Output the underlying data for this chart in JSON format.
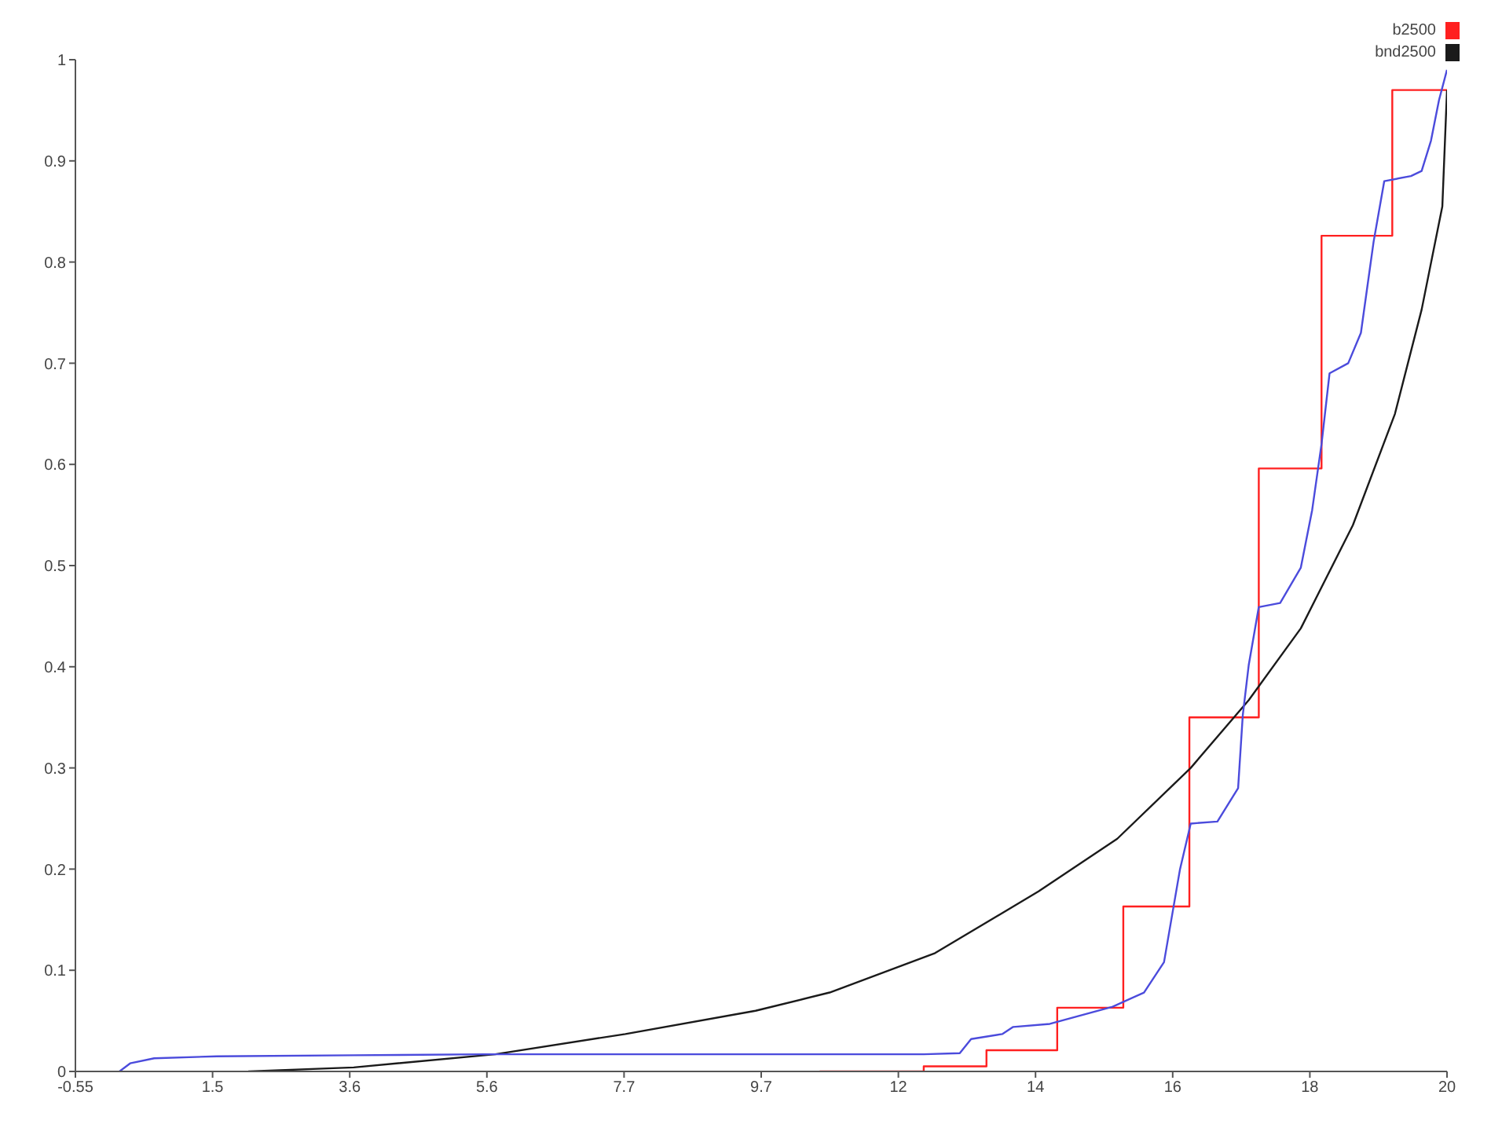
{
  "chart_data": {
    "type": "line",
    "xlim": [
      -0.55,
      20
    ],
    "xticks": [
      -0.55,
      {
        "value": 1.505,
        "label": "1.5"
      },
      {
        "value": 3.56,
        "label": "3.6"
      },
      {
        "value": 5.615,
        "label": "5.6"
      },
      {
        "value": 7.67,
        "label": "7.7"
      },
      {
        "value": 9.725,
        "label": "9.7"
      },
      {
        "value": 11.78,
        "label": "12"
      },
      {
        "value": 13.835,
        "label": "14"
      },
      {
        "value": 15.89,
        "label": "16"
      },
      {
        "value": 17.945,
        "label": "18"
      },
      20
    ],
    "ylim": [
      0,
      1
    ],
    "yticks": [
      0,
      0.1,
      0.2,
      0.3,
      0.4,
      0.5,
      0.6,
      0.7,
      0.8,
      0.9,
      1
    ],
    "grid": false,
    "legend": "top right",
    "series": [
      {
        "name": "b2500",
        "type": "step",
        "color": "#ff2020",
        "x": [
          10.6,
          12.16,
          13.1,
          14.16,
          15.15,
          16.14,
          17.18,
          18.12,
          19.18,
          20
        ],
        "values": [
          0,
          0.005,
          0.021,
          0.063,
          0.163,
          0.35,
          0.596,
          0.826,
          0.97,
          0.97
        ]
      },
      {
        "name": "bnd2500",
        "type": "line",
        "color": "#1a1a1a",
        "x": [
          2.04,
          3.62,
          5.74,
          7.69,
          9.64,
          10.75,
          12.33,
          13.88,
          15.06,
          16.16,
          17.03,
          17.81,
          18.59,
          19.22,
          19.62,
          19.93,
          20
        ],
        "values": [
          0,
          0.004,
          0.017,
          0.037,
          0.06,
          0.078,
          0.117,
          0.178,
          0.23,
          0.3,
          0.367,
          0.438,
          0.54,
          0.65,
          0.753,
          0.855,
          0.97
        ]
      },
      {
        "type": "line",
        "color": "#4b4bdc",
        "x": [
          0.11,
          0.27,
          0.63,
          1.57,
          3.62,
          5.6,
          12.16,
          12.7,
          12.87,
          13.34,
          13.5,
          14.05,
          14.99,
          15.46,
          15.76,
          16,
          16.16,
          16.56,
          16.87,
          16.94,
          17.03,
          17.18,
          17.5,
          17.81,
          17.98,
          18.12,
          18.24,
          18.52,
          18.71,
          18.9,
          19.06,
          19.46,
          19.62,
          19.76,
          19.88,
          20
        ],
        "values": [
          0,
          0.008,
          0.013,
          0.015,
          0.016,
          0.017,
          0.017,
          0.018,
          0.032,
          0.037,
          0.044,
          0.047,
          0.064,
          0.078,
          0.108,
          0.2,
          0.245,
          0.247,
          0.28,
          0.352,
          0.402,
          0.459,
          0.463,
          0.498,
          0.555,
          0.62,
          0.69,
          0.7,
          0.73,
          0.82,
          0.88,
          0.885,
          0.89,
          0.92,
          0.96,
          0.99
        ]
      }
    ]
  }
}
